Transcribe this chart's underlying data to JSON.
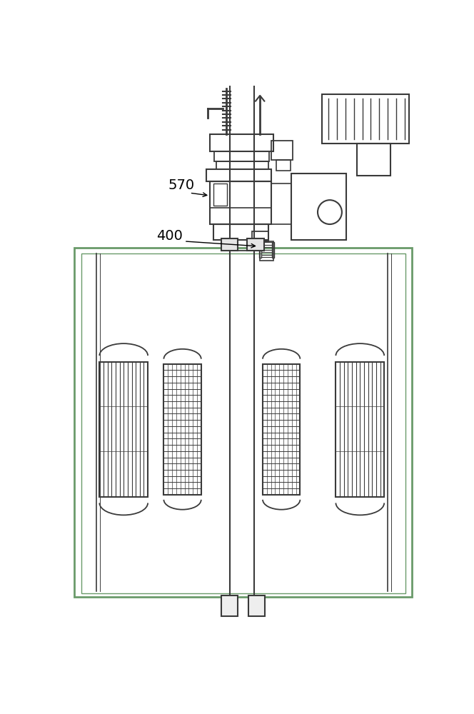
{
  "bg_color": "#ffffff",
  "line_color": "#3a3a3a",
  "green_color": "#6a9a6a",
  "fig_width": 6.64,
  "fig_height": 10.0,
  "label_570": "570",
  "label_400": "400"
}
